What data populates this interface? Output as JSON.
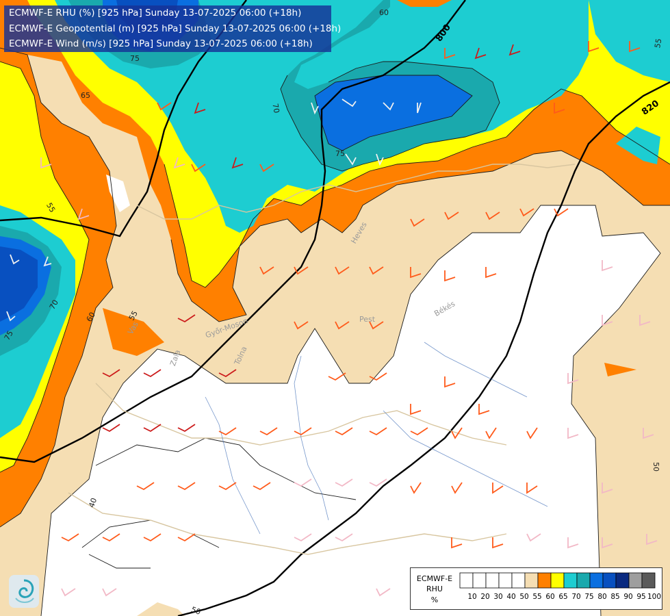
{
  "titles": [
    "ECMWF-E RHU (%) [925 hPa] Sunday 13-07-2025 06:00 (+18h)",
    "ECMWF-E Geopotential (m) [925 hPa] Sunday 13-07-2025 06:00 (+18h)",
    "ECMWF-E Wind (m/s) [925 hPa] Sunday 13-07-2025 06:00 (+18h)"
  ],
  "legend": {
    "title": [
      "ECMWF-E",
      "RHU",
      "%"
    ],
    "ticks": [
      "10",
      "20",
      "30",
      "40",
      "50",
      "55",
      "60",
      "65",
      "70",
      "75",
      "80",
      "85",
      "90",
      "95",
      "100"
    ],
    "colors": [
      "#ffffff",
      "#ffffff",
      "#ffffff",
      "#ffffff",
      "#ffffff",
      "#f5deb3",
      "#ff8000",
      "#ffff00",
      "#1dcdd1",
      "#1aa9ad",
      "#0a6fe0",
      "#0850c0",
      "#0a2a80",
      "#9e9e9e",
      "#5a5a5a"
    ]
  },
  "isobars": [
    "800",
    "820"
  ],
  "contour_labels": [
    "60",
    "65",
    "70",
    "75",
    "75",
    "55",
    "70",
    "60",
    "55",
    "75",
    "40",
    "50",
    "55",
    "50"
  ],
  "region_labels": [
    "Heves",
    "Pest",
    "Békés",
    "Győr-Moson",
    "Tolna",
    "Vas",
    "Zala"
  ],
  "colors": {
    "rh_50": "#ffffff",
    "rh_55": "#f5deb3",
    "rh_60": "#ff8000",
    "rh_65": "#ffff00",
    "rh_70": "#1dcdd1",
    "rh_75": "#1aa9ad",
    "rh_80": "#0a6fe0",
    "rh_85": "#0850c0",
    "title_bg": "#163296"
  }
}
